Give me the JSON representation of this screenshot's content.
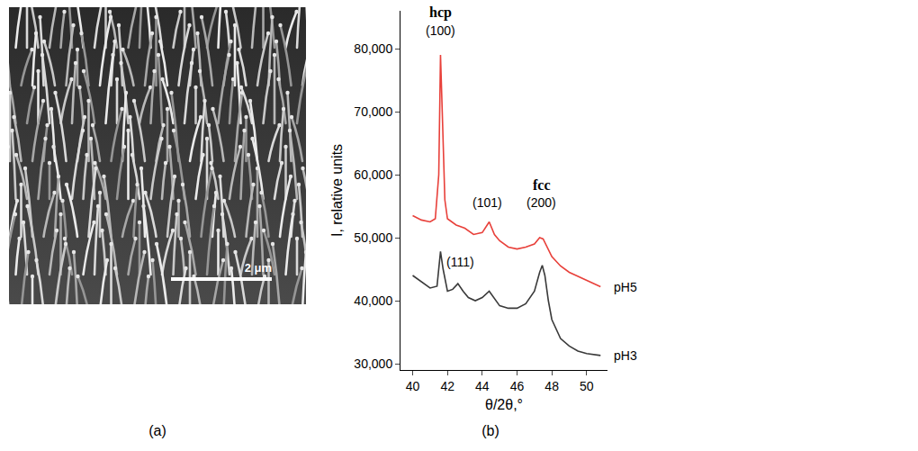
{
  "figure": {
    "panel_a": {
      "label": "(a)",
      "scale_bar": "2 μm"
    },
    "panel_b_label": "(b)"
  },
  "chart_data": {
    "type": "line",
    "x_label": "θ/2θ,°",
    "y_label": "I, relative units",
    "xlim": [
      39.3,
      51.2
    ],
    "xticks": [
      40,
      42,
      44,
      46,
      48,
      50
    ],
    "ylim": [
      29000,
      86000
    ],
    "yticks": [
      {
        "value": 30000,
        "label": "30,000"
      },
      {
        "value": 40000,
        "label": "40,000"
      },
      {
        "value": 50000,
        "label": "50,000"
      },
      {
        "value": 60000,
        "label": "60,000"
      },
      {
        "value": 70000,
        "label": "70,000"
      },
      {
        "value": 80000,
        "label": "80,000"
      }
    ],
    "grid": false,
    "series": [
      {
        "name": "pH5",
        "color": "#e8403a",
        "x": [
          40,
          40.5,
          41,
          41.3,
          41.5,
          41.6,
          41.7,
          41.85,
          42,
          42.5,
          43,
          43.5,
          44,
          44.4,
          44.7,
          45,
          45.5,
          46,
          46.5,
          47,
          47.3,
          47.5,
          48,
          48.5,
          49,
          50,
          50.8
        ],
        "values": [
          53500,
          52800,
          52500,
          53000,
          60000,
          79000,
          70000,
          56000,
          53000,
          52000,
          51500,
          50500,
          50800,
          52500,
          50500,
          49500,
          48500,
          48200,
          48500,
          49000,
          50000,
          49800,
          47000,
          45500,
          44500,
          43200,
          42200
        ]
      },
      {
        "name": "pH3",
        "color": "#3a3a3a",
        "x": [
          40,
          40.5,
          41,
          41.4,
          41.6,
          41.75,
          42,
          42.3,
          42.6,
          42.9,
          43.2,
          43.6,
          44,
          44.4,
          44.8,
          45,
          45.5,
          46,
          46.5,
          47,
          47.3,
          47.45,
          47.6,
          47.8,
          48,
          48.5,
          49,
          49.5,
          50,
          50.8
        ],
        "values": [
          44000,
          43000,
          42000,
          42300,
          47800,
          45000,
          41500,
          41800,
          42700,
          41500,
          40500,
          40000,
          40500,
          41500,
          40000,
          39200,
          38800,
          38800,
          39500,
          41500,
          44500,
          45600,
          44000,
          40000,
          37000,
          34000,
          32800,
          32000,
          31600,
          31300
        ]
      }
    ],
    "annotations": [
      {
        "text": "hcp",
        "x": 41.6,
        "y": 84200,
        "bold": true
      },
      {
        "text": "(100)",
        "x": 41.6,
        "y": 81400
      },
      {
        "text": "(101)",
        "x": 44.3,
        "y": 54200
      },
      {
        "text": "fcc",
        "x": 47.4,
        "y": 56900,
        "bold": true
      },
      {
        "text": "(200)",
        "x": 47.4,
        "y": 54200
      },
      {
        "text": "(111)",
        "x": 42.75,
        "y": 44700
      }
    ]
  }
}
